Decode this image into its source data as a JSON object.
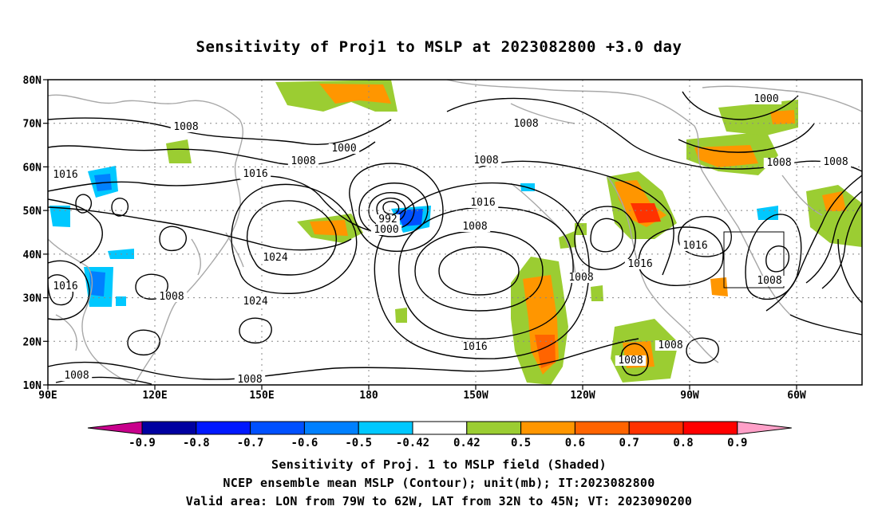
{
  "title": "Sensitivity of Proj1 to MSLP at 2023082800 +3.0 day",
  "map": {
    "lat_labels": [
      "80N",
      "70N",
      "60N",
      "50N",
      "40N",
      "30N",
      "20N",
      "10N"
    ],
    "lon_labels": [
      "90E",
      "120E",
      "150E",
      "180",
      "150W",
      "120W",
      "90W",
      "60W"
    ],
    "contour_labels": [
      "1008",
      "1000",
      "1008",
      "1016",
      "1016",
      "1008",
      "1000",
      "992",
      "1024",
      "1016",
      "1008",
      "1008",
      "1000",
      "1008",
      "1000",
      "1008",
      "1016",
      "1024",
      "1016",
      "1016",
      "1008",
      "1008",
      "1008",
      "1008",
      "1016",
      "1008",
      "1008",
      "1008",
      "1008"
    ],
    "valid_area": {
      "lon": [
        "79W",
        "62W"
      ],
      "lat": [
        "32N",
        "45N"
      ]
    }
  },
  "colorbar": {
    "labels": [
      "-0.9",
      "-0.8",
      "-0.7",
      "-0.6",
      "-0.5",
      "-0.42",
      "0.42",
      "0.5",
      "0.6",
      "0.7",
      "0.8",
      "0.9"
    ],
    "colors": [
      "#c8008c",
      "#0000a0",
      "#0018ff",
      "#0050ff",
      "#0080ff",
      "#00c8ff",
      "#ffffff",
      "#9bcd32",
      "#ff9600",
      "#ff6400",
      "#ff3200",
      "#ff0000",
      "#ffa0c8"
    ]
  },
  "captions": {
    "line1": "Sensitivity of Proj. 1 to MSLP field (Shaded)",
    "line2": "NCEP ensemble mean MSLP (Contour); unit(mb); IT:2023082800",
    "line3": "Valid area: LON from 79W to 62W, LAT from 32N to 45N; VT: 2023090200"
  }
}
